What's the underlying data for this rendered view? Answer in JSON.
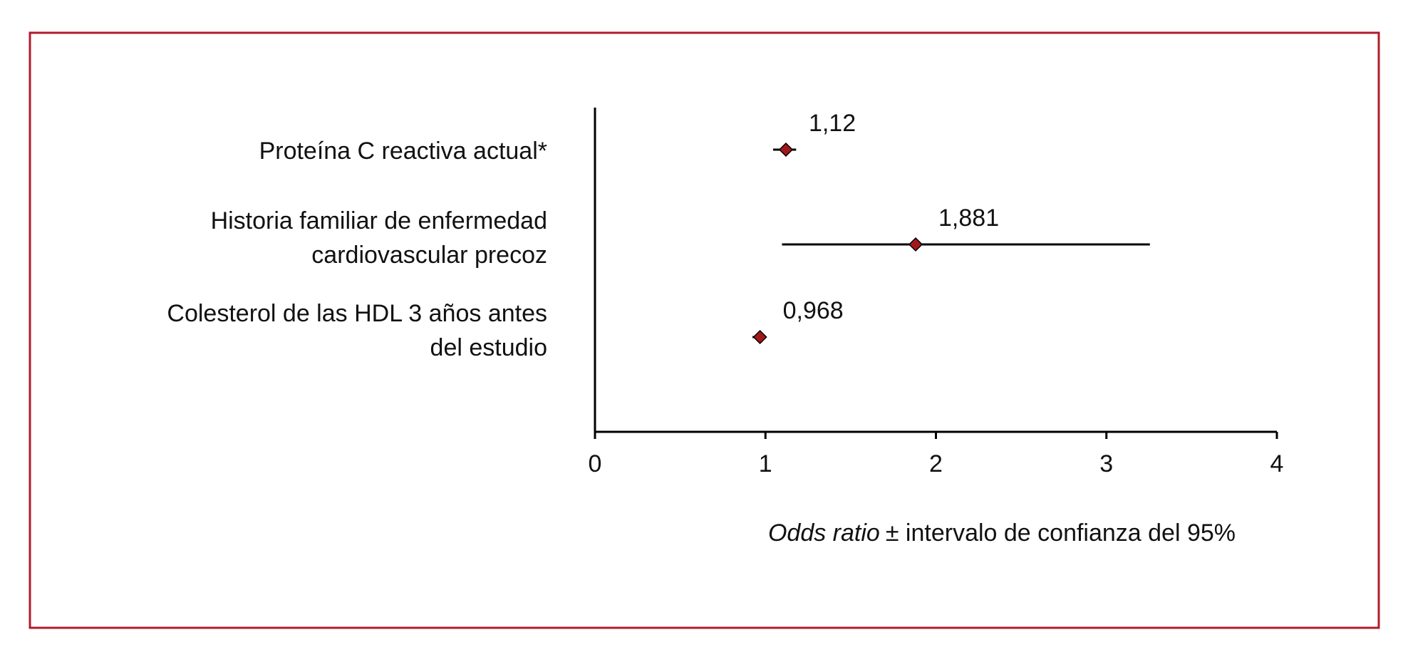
{
  "chart_data": {
    "type": "forest",
    "categories": [
      [
        "Proteína C reactiva actual*"
      ],
      [
        "Historia familiar de enfermedad",
        "cardiovascular precoz"
      ],
      [
        "Colesterol de las HDL 3 años antes",
        "del estudio"
      ]
    ],
    "values": [
      1.12,
      1.881,
      0.968
    ],
    "value_labels": [
      "1,12",
      "1,881",
      "0,968"
    ],
    "lower": [
      1.045,
      1.097,
      0.924
    ],
    "upper": [
      1.18,
      3.255,
      1.003
    ],
    "color": "#a3171c",
    "xlim": [
      0,
      4
    ],
    "xticks": [
      0,
      1,
      2,
      3,
      4
    ],
    "xlabel": [
      "Odds ratio",
      "± intervalo de confianza del 95%"
    ]
  }
}
